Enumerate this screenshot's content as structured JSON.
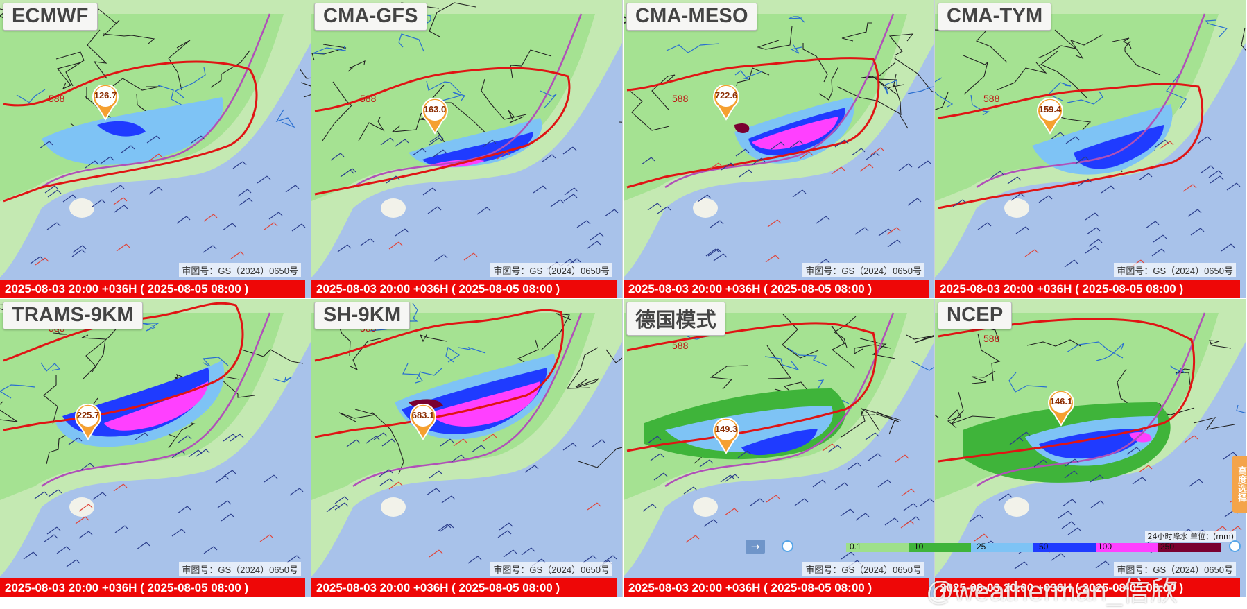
{
  "panels": [
    {
      "model": "ECMWF",
      "approval": "审图号：GS（2024）0650号",
      "time": "2025-08-03 20:00 +036H ( 2025-08-05 08:00 )",
      "max_value": "126.7",
      "contour_label": "588"
    },
    {
      "model": "CMA-GFS",
      "approval": "审图号：GS（2024）0650号",
      "time": "2025-08-03 20:00 +036H ( 2025-08-05 08:00 )",
      "max_value": "163.0",
      "contour_label": "588"
    },
    {
      "model": "CMA-MESO",
      "approval": "审图号：GS（2024）0650号",
      "time": "2025-08-03 20:00 +036H ( 2025-08-05 08:00 )",
      "max_value": "722.6",
      "contour_label": "588"
    },
    {
      "model": "CMA-TYM",
      "approval": "审图号：GS（2024）0650号",
      "time": "2025-08-03 20:00 +036H ( 2025-08-05 08:00 )",
      "max_value": "159.4",
      "contour_label": "588"
    },
    {
      "model": "TRAMS-9KM",
      "approval": "审图号：GS（2024）0650号",
      "time": "2025-08-03 20:00 +036H ( 2025-08-05 08:00 )",
      "max_value": "225.7",
      "contour_label": "588"
    },
    {
      "model": "SH-9KM",
      "approval": "审图号：GS（2024）0650号",
      "time": "2025-08-03 20:00 +036H ( 2025-08-05 08:00 )",
      "max_value": "683.1",
      "contour_label": "588"
    },
    {
      "model": "德国模式",
      "approval": "审图号：GS（2024）0650号",
      "time": "2025-08-03 20:00 +036H ( 2025-08-05 08:00 )",
      "max_value": "149.3",
      "contour_label": "588"
    },
    {
      "model": "NCEP",
      "approval": "审图号：GS（2024）0650号",
      "time": "2025-08-03 20:00 +036H ( 2025-08-05 08:00 )",
      "max_value": "146.1",
      "contour_label": "588"
    }
  ],
  "legend": {
    "title": "24小时降水 单位：(mm)",
    "ticks": [
      "0.1",
      "10",
      "25",
      "50",
      "100",
      "250"
    ],
    "colors": [
      "#9ee08a",
      "#3fb43a",
      "#7ec3f5",
      "#1f3bff",
      "#ff40ff",
      "#7a0030"
    ]
  },
  "height_select": "高度选择",
  "arrow_label": "→",
  "watermark": "@weatherman_信欣",
  "colors": {
    "ocean": "#a8c2ea",
    "rain_light": "#9ee08a",
    "rain_mid": "#3fb43a",
    "rain_heavy": "#7ec3f5",
    "rain_storm": "#1f3bff",
    "rain_extreme": "#ff40ff",
    "contour": "#e01414",
    "timebar": "#ee0707"
  }
}
